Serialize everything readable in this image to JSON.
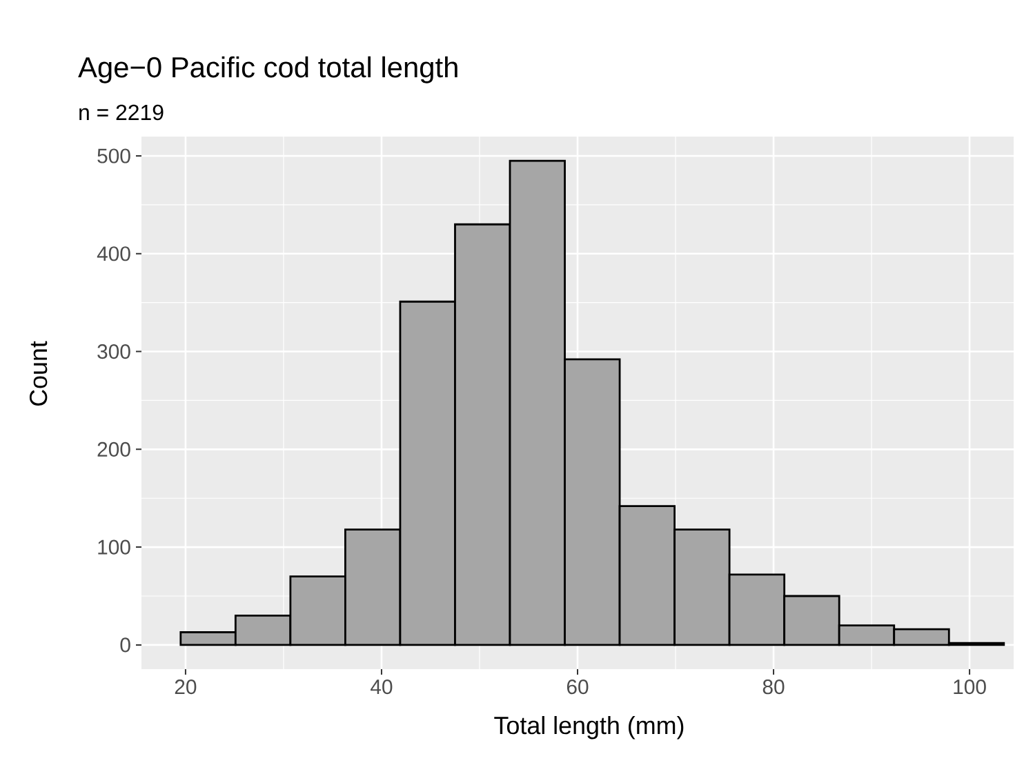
{
  "chart_data": {
    "type": "histogram",
    "title": "Age−0 Pacific cod total length",
    "subtitle": "n =  2219",
    "xlabel": "Total length (mm)",
    "ylabel": "Count",
    "bins": [
      19.5,
      25.1,
      30.7,
      36.3,
      41.9,
      47.5,
      53.1,
      58.7,
      64.3,
      69.9,
      75.5,
      81.1,
      86.7,
      92.3,
      97.9,
      103.5
    ],
    "values": [
      13,
      30,
      70,
      118,
      351,
      430,
      495,
      292,
      142,
      118,
      72,
      50,
      20,
      16,
      2
    ],
    "color": "#a6a6a6",
    "xlim": [
      15.5,
      104.5
    ],
    "ylim": [
      -24.75,
      519.75
    ],
    "xticks": [
      20,
      40,
      60,
      80,
      100
    ],
    "yticks": [
      0,
      100,
      200,
      300,
      400,
      500
    ],
    "grid": true
  }
}
